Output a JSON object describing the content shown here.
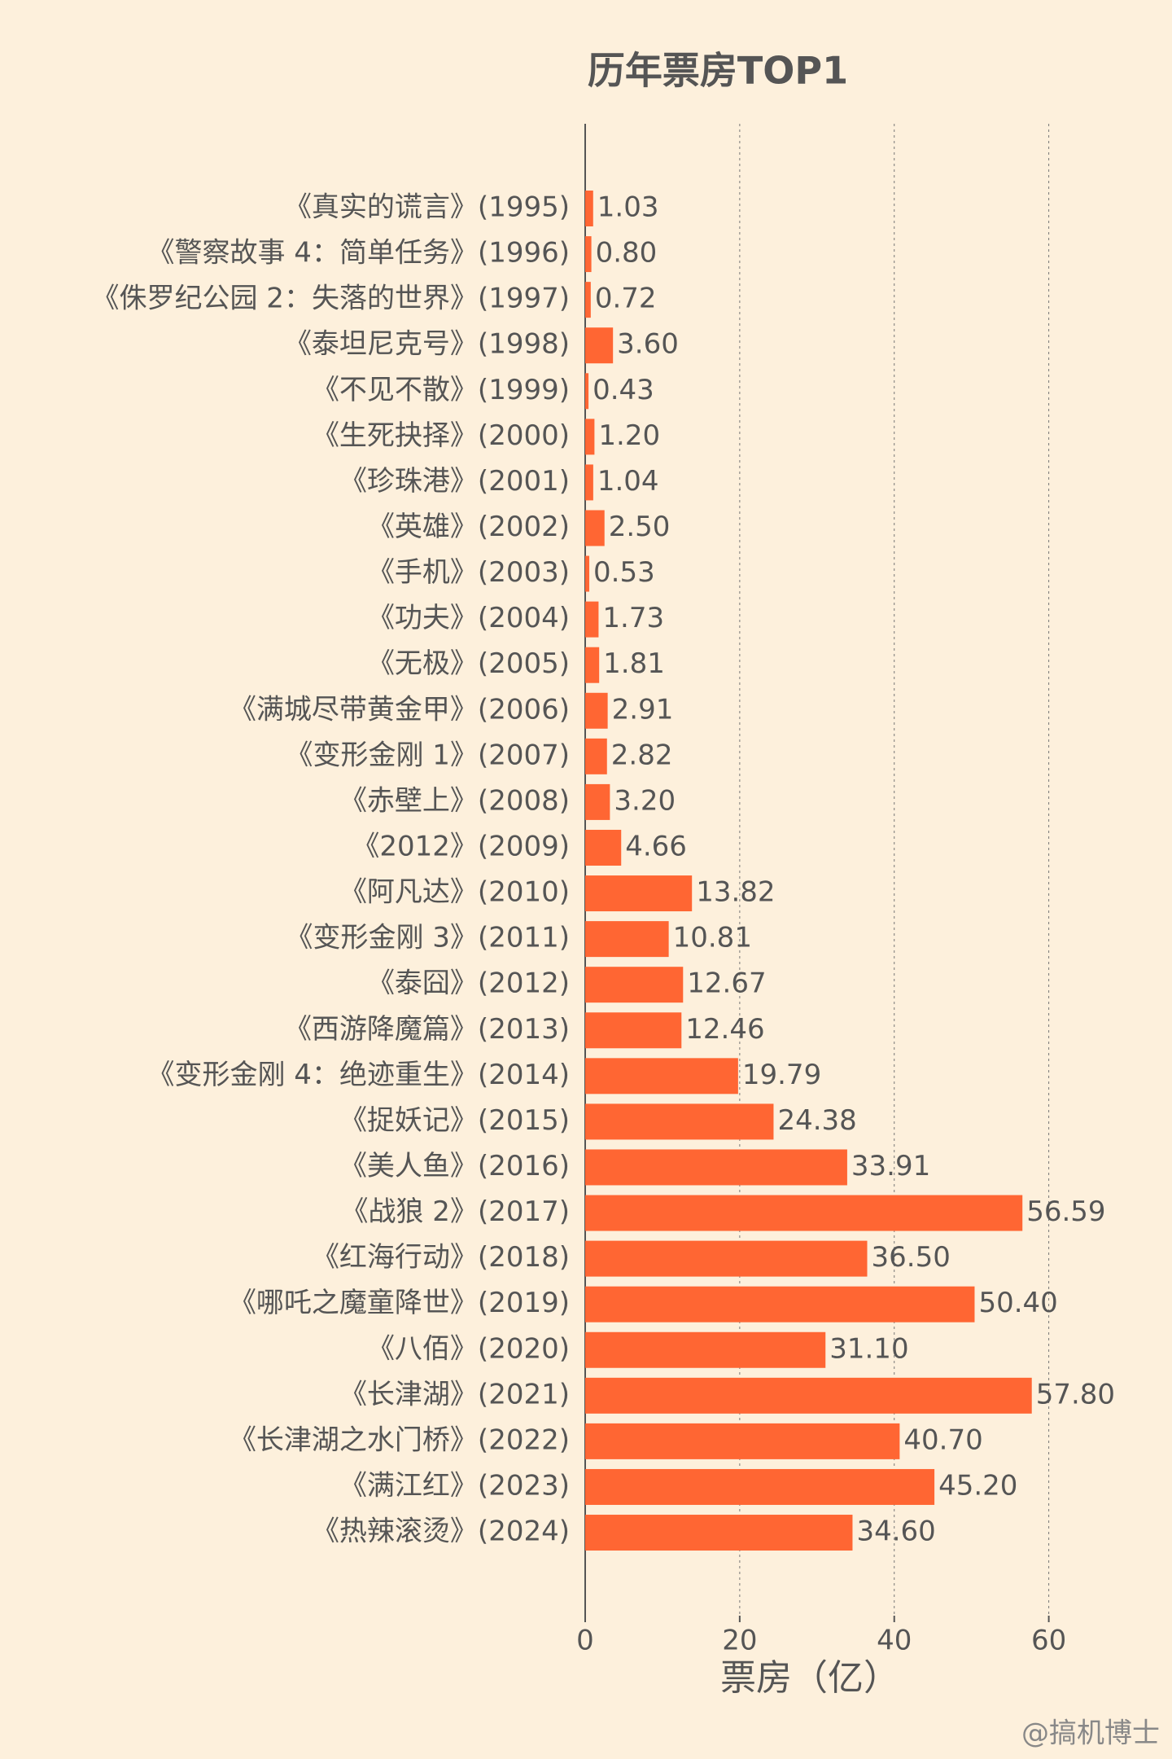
{
  "chart_data": {
    "type": "barh",
    "title": "历年票房TOP1",
    "x_label": "票房（亿）",
    "watermark": "@搞机博士",
    "categories": [
      "《真实的谎言》(1995)",
      "《警察故事 4：简单任务》(1996)",
      "《侏罗纪公园 2：失落的世界》(1997)",
      "《泰坦尼克号》(1998)",
      "《不见不散》(1999)",
      "《生死抉择》(2000)",
      "《珍珠港》(2001)",
      "《英雄》(2002)",
      "《手机》(2003)",
      "《功夫》(2004)",
      "《无极》(2005)",
      "《满城尽带黄金甲》(2006)",
      "《变形金刚 1》(2007)",
      "《赤壁上》(2008)",
      "《2012》(2009)",
      "《阿凡达》(2010)",
      "《变形金刚 3》(2011)",
      "《泰囧》(2012)",
      "《西游降魔篇》(2013)",
      "《变形金刚 4：绝迹重生》(2014)",
      "《捉妖记》(2015)",
      "《美人鱼》(2016)",
      "《战狼 2》(2017)",
      "《红海行动》(2018)",
      "《哪吒之魔童降世》(2019)",
      "《八佰》(2020)",
      "《长津湖》(2021)",
      "《长津湖之水门桥》(2022)",
      "《满江红》(2023)",
      "《热辣滚烫》(2024)"
    ],
    "values": [
      1.03,
      0.8,
      0.72,
      3.6,
      0.43,
      1.2,
      1.04,
      2.5,
      0.53,
      1.73,
      1.81,
      2.91,
      2.82,
      3.2,
      4.66,
      13.82,
      10.81,
      12.67,
      12.46,
      19.79,
      24.38,
      33.91,
      56.59,
      36.5,
      50.4,
      31.1,
      57.8,
      40.7,
      45.2,
      34.6
    ],
    "value_labels": [
      "1.03",
      "0.80",
      "0.72",
      "3.60",
      "0.43",
      "1.20",
      "1.04",
      "2.50",
      "0.53",
      "1.73",
      "1.81",
      "2.91",
      "2.82",
      "3.20",
      "4.66",
      "13.82",
      "10.81",
      "12.67",
      "12.46",
      "19.79",
      "24.38",
      "33.91",
      "56.59",
      "36.50",
      "50.40",
      "31.10",
      "57.80",
      "40.70",
      "45.20",
      "34.60"
    ],
    "color": "#ff6633",
    "xlim": [
      0,
      75
    ],
    "xticks": [
      0,
      20,
      40,
      60
    ],
    "grid": true
  }
}
